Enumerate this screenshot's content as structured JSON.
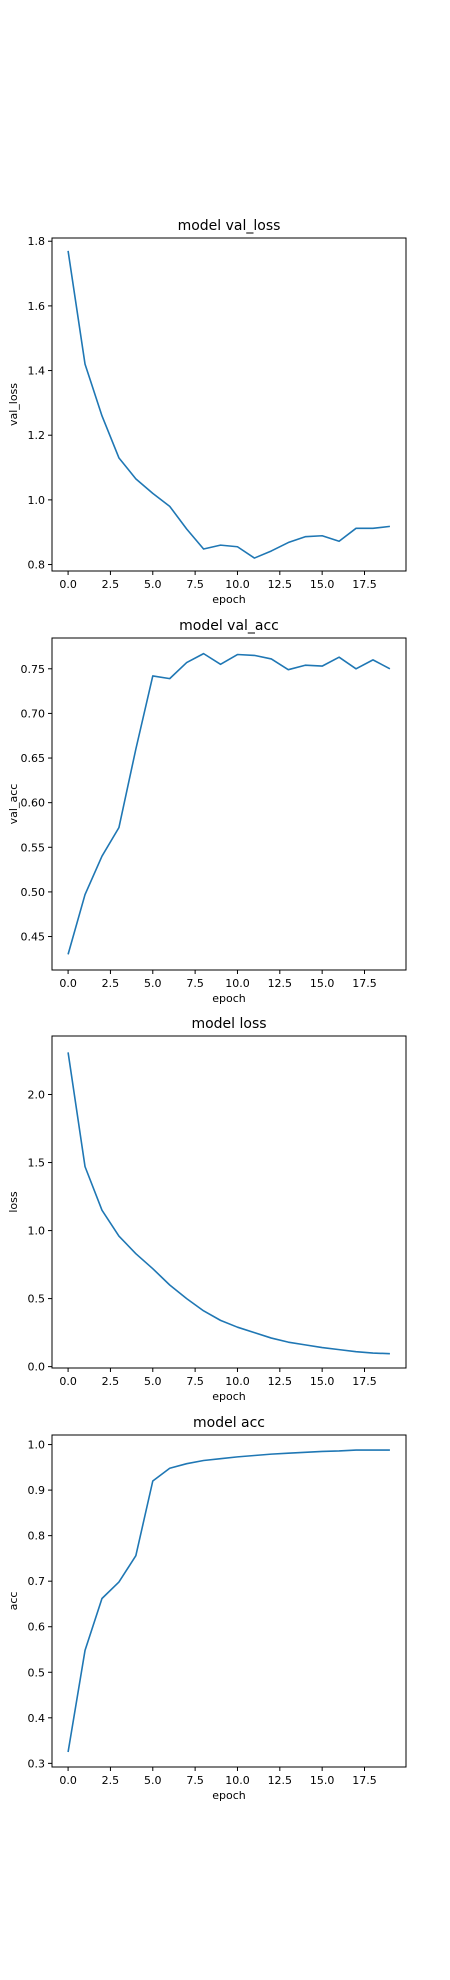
{
  "chart_data": [
    {
      "type": "line",
      "title": "model val_loss",
      "xlabel": "epoch",
      "ylabel": "val_loss",
      "x": [
        0,
        1,
        2,
        3,
        4,
        5,
        6,
        7,
        8,
        9,
        10,
        11,
        12,
        13,
        14,
        15,
        16,
        17,
        18,
        19
      ],
      "xticks": [
        0.0,
        2.5,
        5.0,
        7.5,
        10.0,
        12.5,
        15.0,
        17.5
      ],
      "xtick_labels": [
        "0.0",
        "2.5",
        "5.0",
        "7.5",
        "10.0",
        "12.5",
        "15.0",
        "17.5"
      ],
      "xlim": [
        -0.95,
        19.95
      ],
      "ylim": [
        0.78,
        1.81
      ],
      "yticks": [
        0.8,
        1.0,
        1.2,
        1.4,
        1.6,
        1.8
      ],
      "ytick_labels": [
        "0.8",
        "1.0",
        "1.2",
        "1.4",
        "1.6",
        "1.8"
      ],
      "grid": false,
      "series": [
        {
          "values": [
            1.77,
            1.42,
            1.26,
            1.13,
            1.065,
            1.02,
            0.98,
            0.91,
            0.848,
            0.86,
            0.855,
            0.82,
            0.842,
            0.868,
            0.886,
            0.889,
            0.872,
            0.912,
            0.912,
            0.918
          ]
        }
      ]
    },
    {
      "type": "line",
      "title": "model val_acc",
      "xlabel": "epoch",
      "ylabel": "val_acc",
      "x": [
        0,
        1,
        2,
        3,
        4,
        5,
        6,
        7,
        8,
        9,
        10,
        11,
        12,
        13,
        14,
        15,
        16,
        17,
        18,
        19
      ],
      "xticks": [
        0.0,
        2.5,
        5.0,
        7.5,
        10.0,
        12.5,
        15.0,
        17.5
      ],
      "xtick_labels": [
        "0.0",
        "2.5",
        "5.0",
        "7.5",
        "10.0",
        "12.5",
        "15.0",
        "17.5"
      ],
      "xlim": [
        -0.95,
        19.95
      ],
      "ylim": [
        0.4125,
        0.7845
      ],
      "yticks": [
        0.45,
        0.5,
        0.55,
        0.6,
        0.65,
        0.7,
        0.75
      ],
      "ytick_labels": [
        "0.45",
        "0.50",
        "0.55",
        "0.60",
        "0.65",
        "0.70",
        "0.75"
      ],
      "grid": false,
      "series": [
        {
          "values": [
            0.43,
            0.497,
            0.54,
            0.572,
            0.66,
            0.742,
            0.739,
            0.757,
            0.767,
            0.755,
            0.766,
            0.765,
            0.761,
            0.749,
            0.754,
            0.753,
            0.763,
            0.75,
            0.76,
            0.75
          ]
        }
      ]
    },
    {
      "type": "line",
      "title": "model loss",
      "xlabel": "epoch",
      "ylabel": "loss",
      "x": [
        0,
        1,
        2,
        3,
        4,
        5,
        6,
        7,
        8,
        9,
        10,
        11,
        12,
        13,
        14,
        15,
        16,
        17,
        18,
        19
      ],
      "xticks": [
        0.0,
        2.5,
        5.0,
        7.5,
        10.0,
        12.5,
        15.0,
        17.5
      ],
      "xtick_labels": [
        "0.0",
        "2.5",
        "5.0",
        "7.5",
        "10.0",
        "12.5",
        "15.0",
        "17.5"
      ],
      "xlim": [
        -0.95,
        19.95
      ],
      "ylim": [
        -0.01,
        2.43
      ],
      "yticks": [
        0.0,
        0.5,
        1.0,
        1.5,
        2.0
      ],
      "ytick_labels": [
        "0.0",
        "0.5",
        "1.0",
        "1.5",
        "2.0"
      ],
      "grid": false,
      "series": [
        {
          "values": [
            2.31,
            1.47,
            1.15,
            0.96,
            0.83,
            0.72,
            0.6,
            0.5,
            0.41,
            0.34,
            0.29,
            0.25,
            0.21,
            0.18,
            0.16,
            0.14,
            0.125,
            0.11,
            0.1,
            0.095
          ]
        }
      ]
    },
    {
      "type": "line",
      "title": "model acc",
      "xlabel": "epoch",
      "ylabel": "acc",
      "x": [
        0,
        1,
        2,
        3,
        4,
        5,
        6,
        7,
        8,
        9,
        10,
        11,
        12,
        13,
        14,
        15,
        16,
        17,
        18,
        19
      ],
      "xticks": [
        0.0,
        2.5,
        5.0,
        7.5,
        10.0,
        12.5,
        15.0,
        17.5
      ],
      "xtick_labels": [
        "0.0",
        "2.5",
        "5.0",
        "7.5",
        "10.0",
        "12.5",
        "15.0",
        "17.5"
      ],
      "xlim": [
        -0.95,
        19.95
      ],
      "ylim": [
        0.292,
        1.021
      ],
      "yticks": [
        0.3,
        0.4,
        0.5,
        0.6,
        0.7,
        0.8,
        0.9,
        1.0
      ],
      "ytick_labels": [
        "0.3",
        "0.4",
        "0.5",
        "0.6",
        "0.7",
        "0.8",
        "0.9",
        "1.0"
      ],
      "grid": false,
      "series": [
        {
          "values": [
            0.325,
            0.548,
            0.662,
            0.698,
            0.756,
            0.92,
            0.948,
            0.958,
            0.965,
            0.969,
            0.973,
            0.976,
            0.979,
            0.981,
            0.983,
            0.985,
            0.986,
            0.988,
            0.988,
            0.988
          ]
        }
      ]
    }
  ],
  "colors": {
    "line": "#1f77b4",
    "axes": "#000000",
    "text": "#000000"
  }
}
